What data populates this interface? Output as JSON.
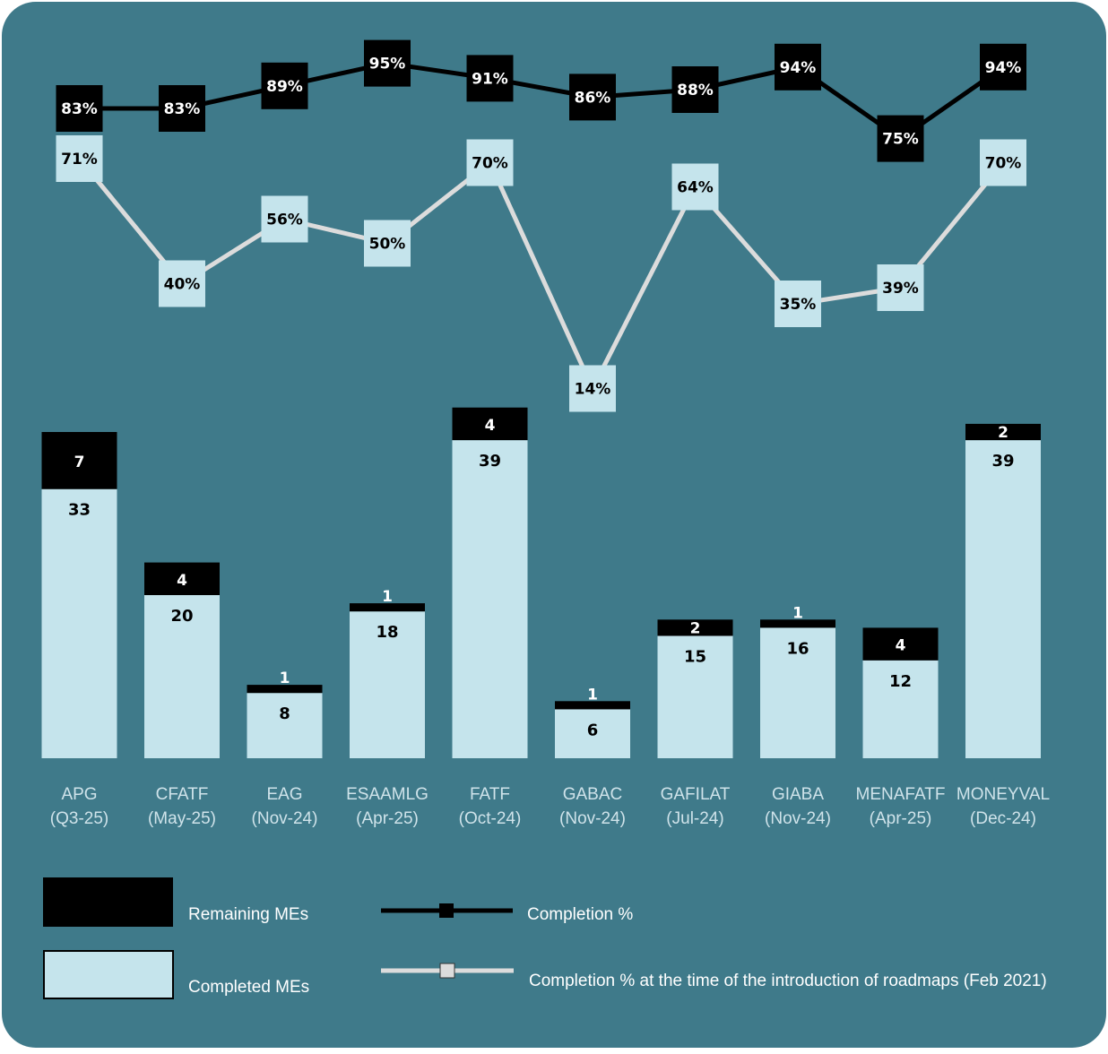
{
  "colors": {
    "panel": "#3f7a8a",
    "remaining": "#000000",
    "completed": "#c5e4ec",
    "line_current": "#000000",
    "line_baseline": "#dcdcdc"
  },
  "chart_data": {
    "type": "bar",
    "stacked": true,
    "categories": [
      "APG",
      "CFATF",
      "EAG",
      "ESAAMLG",
      "FATF",
      "GABAC",
      "GAFILAT",
      "GIABA",
      "MENAFATF",
      "MONEYVAL"
    ],
    "category_dates": [
      "(Q3-25)",
      "(May-25)",
      "(Nov-24)",
      "(Apr-25)",
      "(Oct-24)",
      "(Nov-24)",
      "(Jul-24)",
      "(Nov-24)",
      "(Apr-25)",
      "(Dec-24)"
    ],
    "series": [
      {
        "name": "Completed MEs",
        "values": [
          33,
          20,
          8,
          18,
          39,
          6,
          15,
          16,
          12,
          39
        ]
      },
      {
        "name": "Remaining MEs",
        "values": [
          7,
          4,
          1,
          1,
          4,
          1,
          2,
          1,
          4,
          2
        ]
      }
    ],
    "lines": [
      {
        "name": "Completion %",
        "values": [
          83,
          83,
          89,
          95,
          91,
          86,
          88,
          94,
          75,
          94
        ],
        "labels": [
          "83%",
          "83%",
          "89%",
          "95%",
          "91%",
          "86%",
          "88%",
          "94%",
          "75%",
          "94%"
        ]
      },
      {
        "name": "Completion % at the time of the introduction of  roadmaps (Feb 2021)",
        "values": [
          71,
          40,
          56,
          50,
          70,
          14,
          64,
          35,
          39,
          70
        ],
        "labels": [
          "71%",
          "40%",
          "56%",
          "50%",
          "70%",
          "14%",
          "64%",
          "35%",
          "39%",
          "70%"
        ]
      }
    ],
    "legend": [
      "Remaining MEs",
      "Completed MEs",
      "Completion %",
      "Completion % at the time of the introduction of  roadmaps (Feb 2021)"
    ],
    "legend_position": "bottom",
    "grid": false
  }
}
